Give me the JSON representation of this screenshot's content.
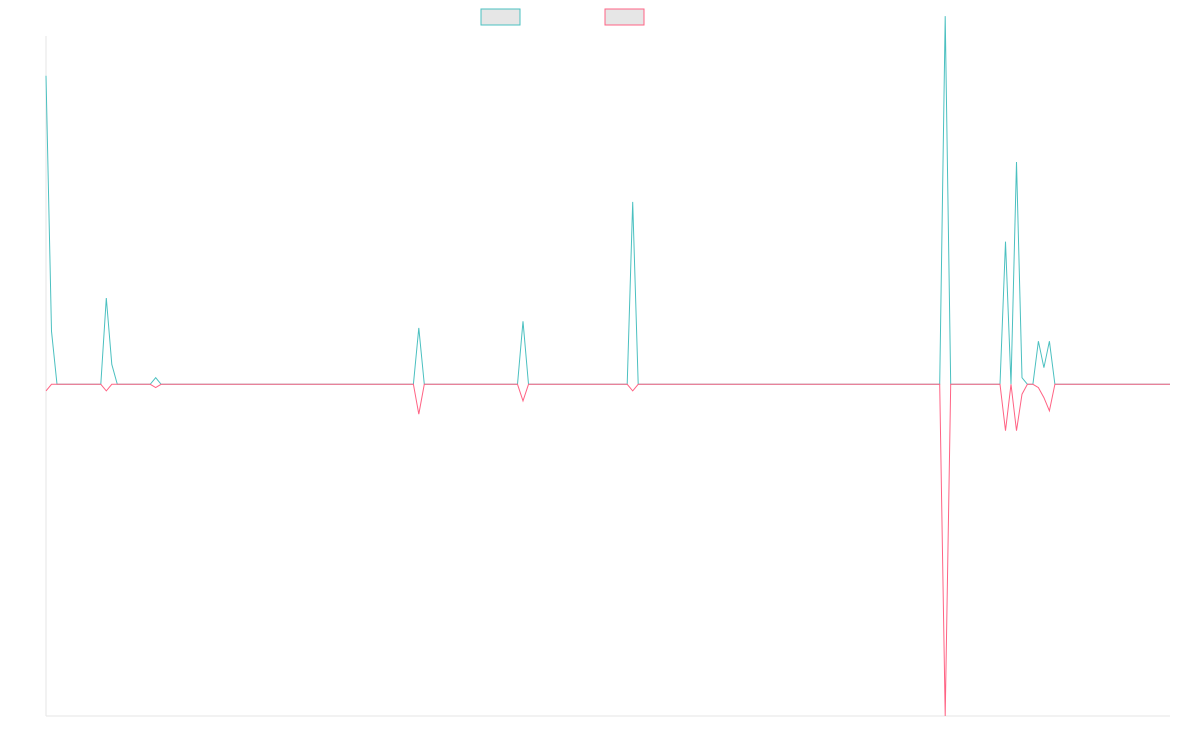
{
  "chart_data": {
    "type": "line",
    "title": "",
    "xlabel": "",
    "ylabel": "",
    "legend_position": "top-center",
    "grid": false,
    "xlim": [
      0,
      205
    ],
    "ylim": [
      -1,
      1.05
    ],
    "colors": {
      "series_a": "#4bc0c0",
      "series_b": "#ff6384",
      "legend_fill": "#e6e6e6",
      "axis": "#e6e6e6"
    },
    "series": [
      {
        "points": [
          [
            0,
            0.93
          ],
          [
            1,
            0.16
          ],
          [
            2,
            0
          ],
          [
            10,
            0
          ],
          [
            11,
            0.26
          ],
          [
            12,
            0.06
          ],
          [
            13,
            0
          ],
          [
            19,
            0
          ],
          [
            20,
            0.02
          ],
          [
            21,
            0
          ],
          [
            67,
            0
          ],
          [
            68,
            0.17
          ],
          [
            69,
            0
          ],
          [
            86,
            0
          ],
          [
            87,
            0.19
          ],
          [
            88,
            0
          ],
          [
            106,
            0
          ],
          [
            107,
            0.55
          ],
          [
            108,
            0
          ],
          [
            163,
            0
          ],
          [
            164,
            1.11
          ],
          [
            165,
            0
          ],
          [
            174,
            0
          ],
          [
            175,
            0.43
          ],
          [
            176,
            0
          ],
          [
            177,
            0.67
          ],
          [
            178,
            0.02
          ],
          [
            179,
            0
          ],
          [
            180,
            0
          ],
          [
            181,
            0.13
          ],
          [
            182,
            0.05
          ],
          [
            183,
            0.13
          ],
          [
            184,
            0
          ],
          [
            205,
            0
          ]
        ]
      },
      {
        "points": [
          [
            0,
            -0.02
          ],
          [
            1,
            0
          ],
          [
            10,
            0
          ],
          [
            11,
            -0.02
          ],
          [
            12,
            0
          ],
          [
            19,
            0
          ],
          [
            20,
            -0.01
          ],
          [
            21,
            0
          ],
          [
            67,
            0
          ],
          [
            68,
            -0.09
          ],
          [
            69,
            0
          ],
          [
            86,
            0
          ],
          [
            87,
            -0.05
          ],
          [
            88,
            0
          ],
          [
            106,
            0
          ],
          [
            107,
            -0.02
          ],
          [
            108,
            0
          ],
          [
            163,
            0
          ],
          [
            164,
            -1.0
          ],
          [
            165,
            0
          ],
          [
            174,
            0
          ],
          [
            175,
            -0.14
          ],
          [
            176,
            0
          ],
          [
            177,
            -0.14
          ],
          [
            178,
            -0.03
          ],
          [
            179,
            0
          ],
          [
            180,
            0
          ],
          [
            181,
            -0.01
          ],
          [
            182,
            -0.04
          ],
          [
            183,
            -0.08
          ],
          [
            184,
            0
          ],
          [
            205,
            0
          ]
        ]
      }
    ]
  }
}
